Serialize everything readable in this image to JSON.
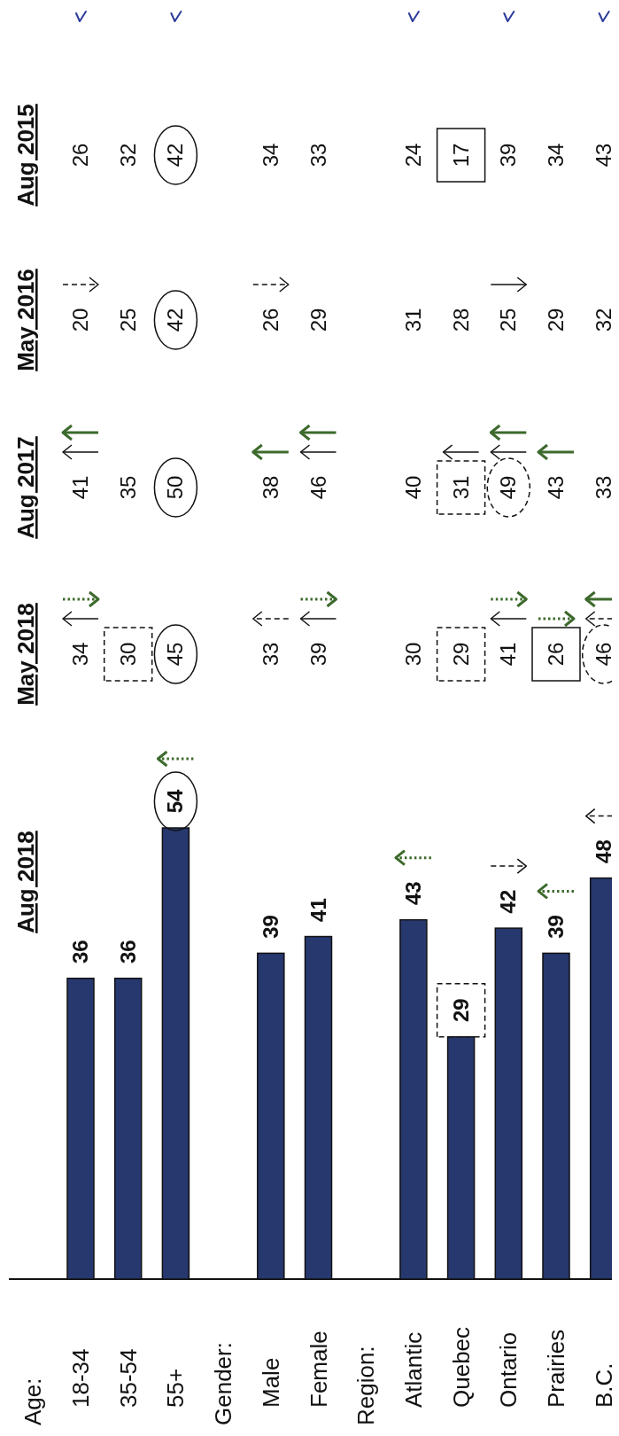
{
  "chart_data": {
    "type": "bar",
    "categories": [
      null,
      "18-34",
      "35-54",
      "55+",
      null,
      "Male",
      "Female",
      null,
      "Atlantic",
      "Quebec",
      "Ontario",
      "Prairies",
      "B.C."
    ],
    "series": [
      {
        "name": "Aug 2018",
        "color": "#27386f",
        "values": [
          null,
          36,
          36,
          54,
          null,
          39,
          41,
          null,
          43,
          29,
          42,
          39,
          48
        ]
      }
    ],
    "data_labels": true,
    "annotations": [
      "Age:",
      "Gender:",
      "Region:",
      "May 2018",
      "34",
      "30",
      "45",
      "33",
      "39",
      "30",
      "29",
      "41",
      "26",
      "46",
      "Aug 2017",
      "41",
      "35",
      "50",
      "38",
      "46",
      "40",
      "31",
      "49",
      "43",
      "33",
      "May 2016",
      "20",
      "25",
      "42",
      "26",
      "29",
      "31",
      "28",
      "25",
      "29",
      "32",
      "Aug 2015",
      "26",
      "32",
      "42",
      "34",
      "33",
      "24",
      "17",
      "39",
      "34",
      "43"
    ]
  }
}
